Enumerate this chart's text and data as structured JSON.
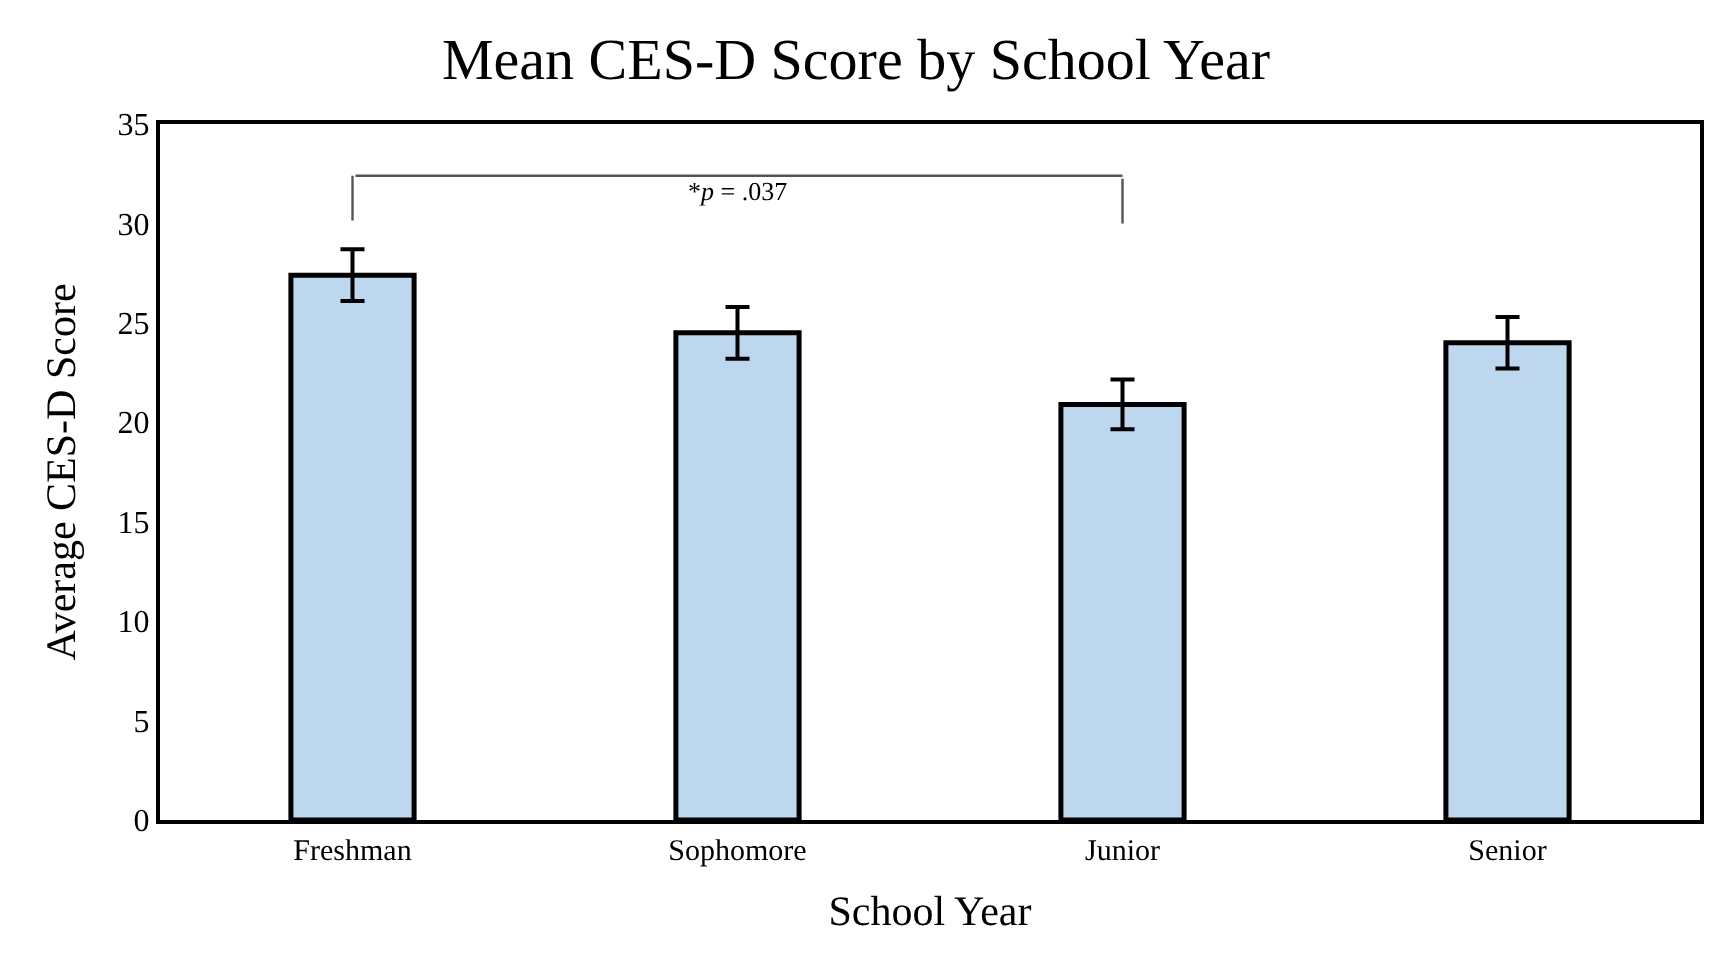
{
  "chart_data": {
    "type": "bar",
    "title": "Mean CES-D Score by School Year",
    "xlabel": "School Year",
    "ylabel": "Average CES-D Score",
    "categories": [
      "Freshman",
      "Sophomore",
      "Junior",
      "Senior"
    ],
    "values": [
      27.4,
      24.5,
      20.9,
      24.0
    ],
    "errors": [
      1.3,
      1.3,
      1.25,
      1.3
    ],
    "color": "#bdd7ee",
    "ylim": [
      0,
      35
    ],
    "yticks": [
      0,
      5,
      10,
      15,
      20,
      25,
      30,
      35
    ],
    "annotations": [
      "*p = .037"
    ]
  }
}
